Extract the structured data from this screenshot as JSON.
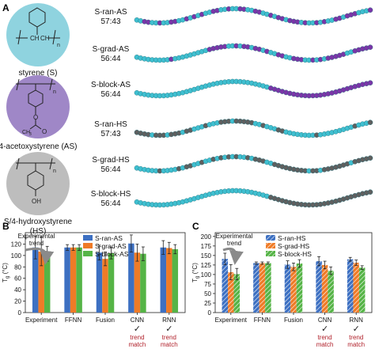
{
  "panel_a": {
    "label": "A",
    "monomers": [
      {
        "name": "styrene (S)",
        "color": "#8fd3df"
      },
      {
        "name": "4-acetoxystyrene (AS)",
        "color": "#9f87c7"
      },
      {
        "name": "S/4-hydroxystyrene\n(HS)",
        "color": "#bdbdbd"
      }
    ],
    "structure_labels": {
      "n": "n",
      "ch": "CH",
      "ch2": "CH",
      "sub2": "2",
      "ch3": "CH",
      "sub3": "3",
      "oh": "OH",
      "o": "O"
    },
    "copolymers": [
      {
        "name": "S-ran-AS",
        "ratio": "57:43",
        "pattern": "ran",
        "colors": [
          "#3fbfd0",
          "#7b35a8"
        ]
      },
      {
        "name": "S-grad-AS",
        "ratio": "56:44",
        "pattern": "grad",
        "colors": [
          "#3fbfd0",
          "#7b35a8"
        ]
      },
      {
        "name": "S-block-AS",
        "ratio": "56:44",
        "pattern": "block",
        "colors": [
          "#3fbfd0",
          "#7b35a8"
        ]
      },
      {
        "name": "S-ran-HS",
        "ratio": "57:43",
        "pattern": "ran",
        "colors": [
          "#3fbfd0",
          "#5f5f5f"
        ]
      },
      {
        "name": "S-grad-HS",
        "ratio": "56:44",
        "pattern": "grad",
        "colors": [
          "#3fbfd0",
          "#5f5f5f"
        ]
      },
      {
        "name": "S-block-HS",
        "ratio": "56:44",
        "pattern": "block",
        "colors": [
          "#3fbfd0",
          "#5f5f5f"
        ]
      }
    ]
  },
  "chart_data": [
    {
      "type": "bar",
      "panel_label": "B",
      "ylabel": "T",
      "ylabel_sub": "g",
      "ylabel_unit": " (°C)",
      "ylim": [
        0,
        140
      ],
      "yticks": [
        0,
        20,
        40,
        60,
        80,
        100,
        120
      ],
      "categories": [
        "Experiment",
        "FFNN",
        "Fusion",
        "CNN",
        "RNN"
      ],
      "series": [
        {
          "name": "S-ran-AS",
          "color": "#3d70c2",
          "hatch": false,
          "values": [
            114,
            114,
            105,
            121,
            114
          ],
          "errors": [
            20,
            5,
            13,
            15,
            12
          ]
        },
        {
          "name": "S-grad-AS",
          "color": "#ef7b27",
          "hatch": false,
          "values": [
            107,
            114,
            94,
            105,
            113
          ],
          "errors": [
            25,
            5,
            12,
            15,
            10
          ]
        },
        {
          "name": "S-block-AS",
          "color": "#55b446",
          "hatch": false,
          "values": [
            103,
            114,
            104,
            103,
            111
          ],
          "errors": [
            13,
            5,
            10,
            12,
            8
          ]
        }
      ],
      "annotation": "Experimental\ntrend",
      "trend_labels": [
        {
          "category": "CNN",
          "text": "trend\nmatch",
          "check": "✓",
          "check_color": "#1a1a1a"
        },
        {
          "category": "RNN",
          "text": "trend\nmatch",
          "check": "✓",
          "check_color": "#1a1a1a"
        }
      ],
      "trend_label_color": "#b0202a",
      "legend": "top-center"
    },
    {
      "type": "bar",
      "panel_label": "C",
      "ylabel": "T",
      "ylabel_sub": "g",
      "ylabel_unit": " (°C)",
      "ylim": [
        0,
        210
      ],
      "yticks": [
        0,
        25,
        50,
        75,
        100,
        125,
        150,
        175,
        200
      ],
      "categories": [
        "Experiment",
        "FFNN",
        "Fusion",
        "CNN",
        "RNN"
      ],
      "series": [
        {
          "name": "S-ran-HS",
          "color": "#3d70c2",
          "hatch": true,
          "values": [
            141,
            130,
            126,
            135,
            140
          ],
          "errors": [
            15,
            3,
            10,
            12,
            5
          ]
        },
        {
          "name": "S-grad-HS",
          "color": "#ef7b27",
          "hatch": true,
          "values": [
            106,
            130,
            120,
            125,
            131
          ],
          "errors": [
            20,
            3,
            10,
            10,
            7
          ]
        },
        {
          "name": "S-block-HS",
          "color": "#55b446",
          "hatch": true,
          "values": [
            101,
            130,
            129,
            110,
            118
          ],
          "errors": [
            15,
            3,
            10,
            10,
            5
          ]
        }
      ],
      "annotation": "Experimental\ntrend",
      "trend_labels": [
        {
          "category": "CNN",
          "text": "trend\nmatch",
          "check": "✓",
          "check_color": "#1a1a1a"
        },
        {
          "category": "RNN",
          "text": "trend\nmatch",
          "check": "✓",
          "check_color": "#1a1a1a"
        }
      ],
      "trend_label_color": "#b0202a",
      "legend": "top-center"
    }
  ]
}
